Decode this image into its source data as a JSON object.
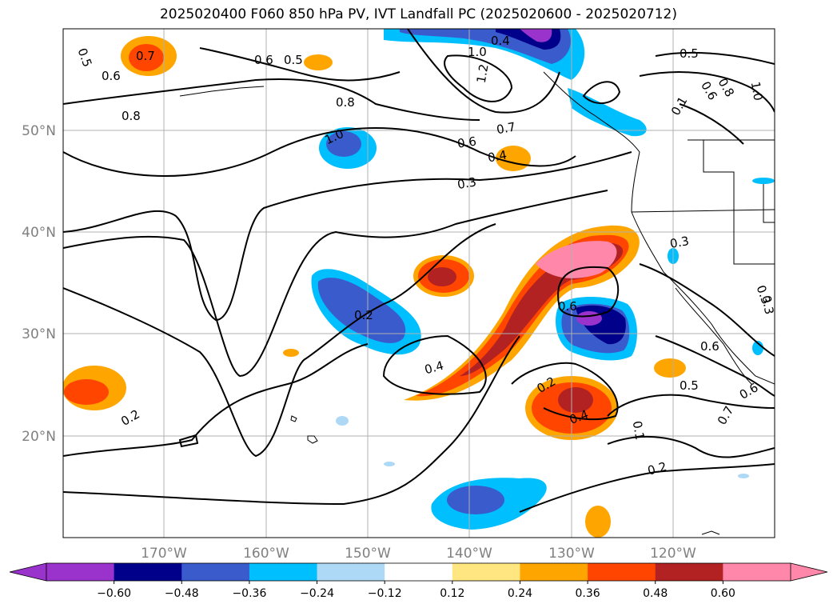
{
  "title": "2025020400 F060 850 hPa PV, IVT Landfall PC (2025020600 - 2025020712)",
  "lat_labels": [
    "50°N",
    "40°N",
    "30°N",
    "20°N"
  ],
  "lon_labels": [
    "170°W",
    "160°W",
    "150°W",
    "140°W",
    "130°W",
    "120°W"
  ],
  "colorbar": {
    "ticks": [
      "−0.60",
      "−0.48",
      "−0.36",
      "−0.24",
      "−0.12",
      "0.12",
      "0.24",
      "0.36",
      "0.48",
      "0.60"
    ],
    "colors": [
      "#9933cc",
      "#00008b",
      "#3a5bcc",
      "#00bfff",
      "#add8f6",
      "#ffffff",
      "#ffe680",
      "#ffa500",
      "#ff4500",
      "#b22222",
      "#ff88aa"
    ]
  },
  "contour_labels": [
    "0.5",
    "0.6",
    "0.7",
    "0.6",
    "0.5",
    "0.8",
    "1.0",
    "1.2",
    "0.4",
    "0.5",
    "0.8",
    "1.0",
    "0.6",
    "0.1",
    "0.8",
    "1.0",
    "0.7",
    "0.6",
    "0.4",
    "0.3",
    "0.3",
    "0.2",
    "0.4",
    "0.6",
    "0.3",
    "0.2",
    "0.4",
    "0.6",
    "0.5",
    "0.6",
    "0.7",
    "0.1",
    "0.2",
    "0.2",
    "0.3"
  ]
}
